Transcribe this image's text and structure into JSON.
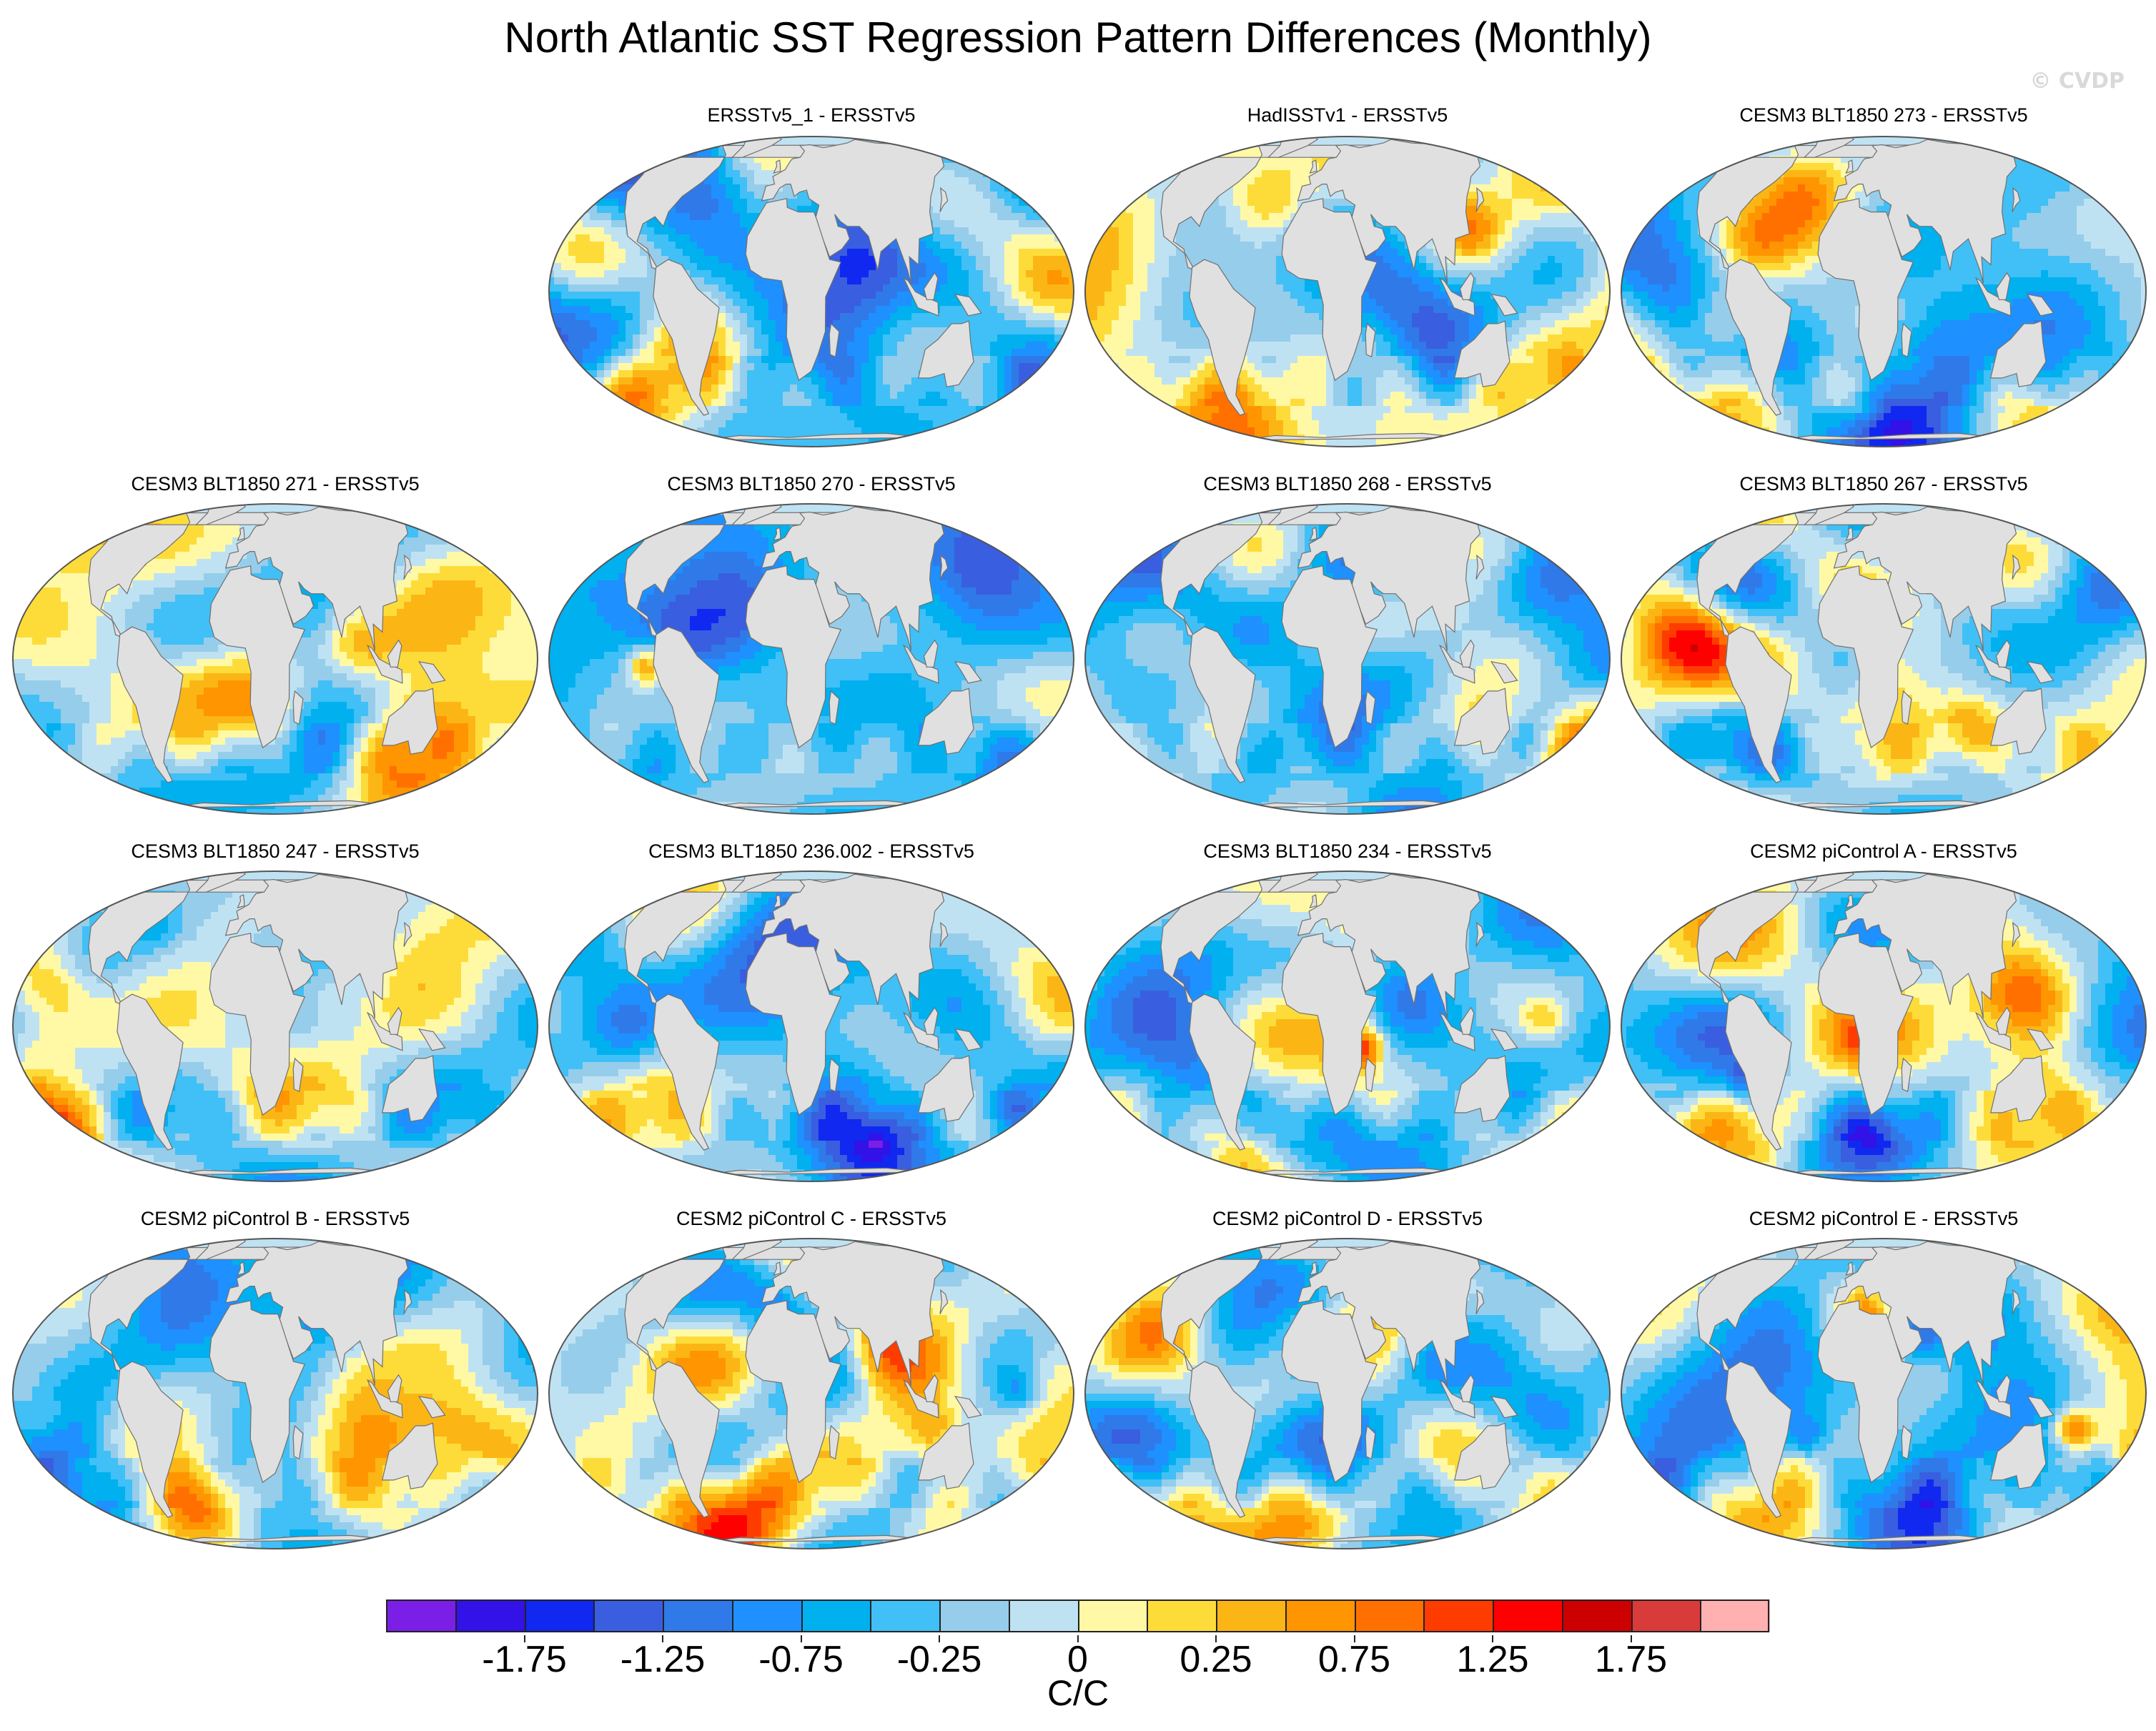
{
  "title": "North Atlantic SST Regression Pattern Differences (Monthly)",
  "credit": "© CVDP",
  "panels": [
    {
      "title": "ERSSTv5_1 - ERSSTv5",
      "row": 0,
      "col": 1,
      "seed": 3,
      "bias": -0.35
    },
    {
      "title": "HadISSTv1 - ERSSTv5",
      "row": 0,
      "col": 2,
      "seed": 11,
      "bias": 0.05
    },
    {
      "title": "CESM3 BLT1850 273 - ERSSTv5",
      "row": 0,
      "col": 3,
      "seed": 19,
      "bias": -0.3
    },
    {
      "title": "CESM3 BLT1850 271 - ERSSTv5",
      "row": 1,
      "col": 0,
      "seed": 27,
      "bias": 0.1
    },
    {
      "title": "CESM3 BLT1850 270 - ERSSTv5",
      "row": 1,
      "col": 1,
      "seed": 35,
      "bias": -0.4
    },
    {
      "title": "CESM3 BLT1850 268 - ERSSTv5",
      "row": 1,
      "col": 2,
      "seed": 43,
      "bias": -0.3
    },
    {
      "title": "CESM3 BLT1850 267 - ERSSTv5",
      "row": 1,
      "col": 3,
      "seed": 51,
      "bias": 0.0
    },
    {
      "title": "CESM3 BLT1850 247 - ERSSTv5",
      "row": 2,
      "col": 0,
      "seed": 59,
      "bias": -0.05
    },
    {
      "title": "CESM3 BLT1850 236.002 - ERSSTv5",
      "row": 2,
      "col": 1,
      "seed": 67,
      "bias": -0.45
    },
    {
      "title": "CESM3 BLT1850 234 - ERSSTv5",
      "row": 2,
      "col": 2,
      "seed": 75,
      "bias": -0.2
    },
    {
      "title": "CESM2 piControl A - ERSSTv5",
      "row": 2,
      "col": 3,
      "seed": 83,
      "bias": -0.15
    },
    {
      "title": "CESM2 piControl B - ERSSTv5",
      "row": 3,
      "col": 0,
      "seed": 91,
      "bias": -0.4
    },
    {
      "title": "CESM2 piControl C - ERSSTv5",
      "row": 3,
      "col": 1,
      "seed": 99,
      "bias": 0.0
    },
    {
      "title": "CESM2 piControl D - ERSSTv5",
      "row": 3,
      "col": 2,
      "seed": 107,
      "bias": -0.35
    },
    {
      "title": "CESM2 piControl E - ERSSTv5",
      "row": 3,
      "col": 3,
      "seed": 115,
      "bias": -0.4
    }
  ],
  "colorbar": {
    "colors": [
      "#7b1ee6",
      "#3212e6",
      "#1028f0",
      "#3a5ee0",
      "#2f7ae8",
      "#1e90ff",
      "#00b0ef",
      "#40c0f6",
      "#96cdea",
      "#bfe2f3",
      "#fff9a6",
      "#fddc3a",
      "#fbb615",
      "#ff9500",
      "#ff7000",
      "#ff3c00",
      "#ff0000",
      "#cc0000",
      "#d93a3a",
      "#ffb0b0"
    ],
    "labels": [
      "-1.75",
      "-1.25",
      "-0.75",
      "-0.25",
      "0",
      "0.25",
      "0.75",
      "1.25",
      "1.75"
    ],
    "label_boundaries": [
      1,
      3,
      5,
      7,
      9,
      11,
      13,
      15,
      17
    ],
    "units": "C/C"
  },
  "land_color": "#e0e0e0",
  "coast_color": "#707070"
}
